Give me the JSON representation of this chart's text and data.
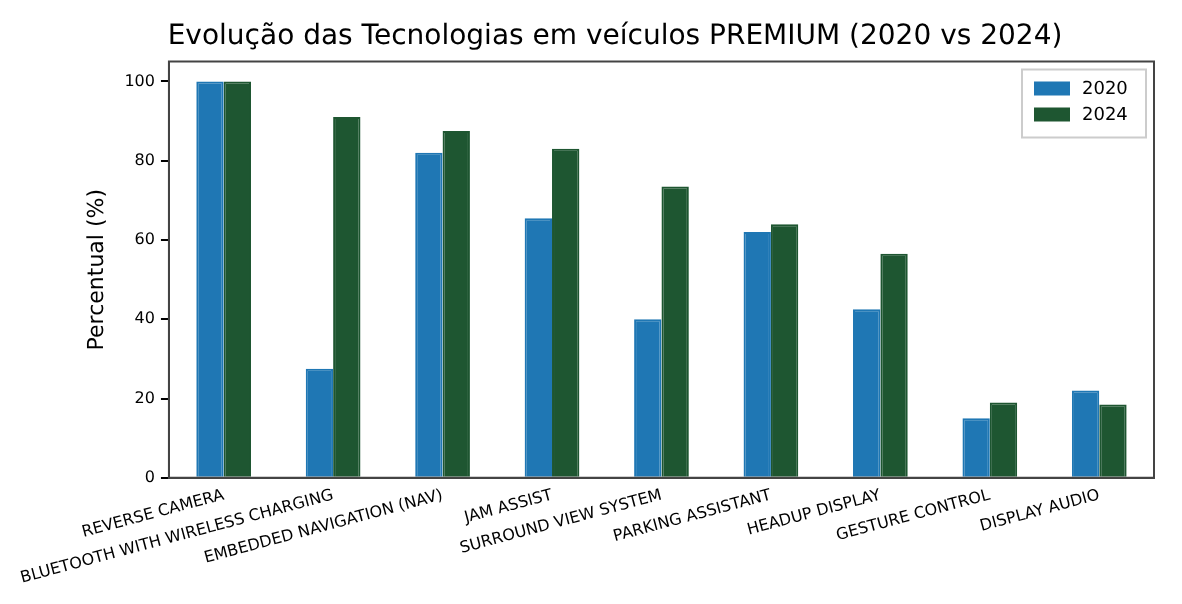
{
  "chart_data": {
    "type": "bar",
    "title": "Evolução das Tecnologias em veículos PREMIUM (2020 vs 2024)",
    "ylabel": "Percentual (%)",
    "categories": [
      "REVERSE CAMERA",
      "BLUETOOTH WITH WIRELESS CHARGING",
      "EMBEDDED NAVIGATION (NAV)",
      "JAM ASSIST",
      "SURROUND VIEW SYSTEM",
      "PARKING ASSISTANT",
      "HEADUP DISPLAY",
      "GESTURE CONTROL",
      "DISPLAY AUDIO"
    ],
    "series": [
      {
        "name": "2020",
        "color": "#1f77b4",
        "values": [
          100,
          27.5,
          82,
          65.5,
          40,
          62,
          42.5,
          15,
          22
        ]
      },
      {
        "name": "2024",
        "color": "#1e5631",
        "values": [
          100,
          91,
          87.5,
          83,
          73.5,
          64,
          56.5,
          19,
          18.5
        ]
      }
    ],
    "ylim": [
      0,
      105
    ],
    "yticks": [
      0,
      20,
      40,
      60,
      80,
      100
    ],
    "grid": false,
    "legend": "top right"
  }
}
